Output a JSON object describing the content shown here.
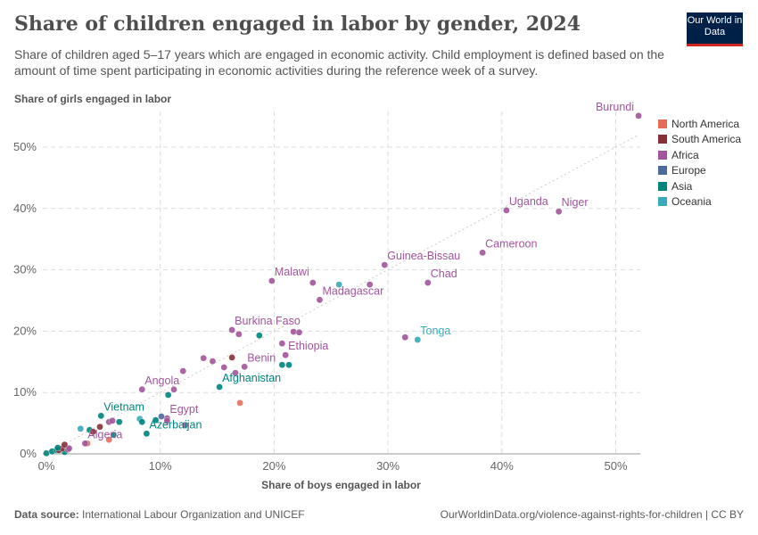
{
  "header": {
    "title": "Share of children engaged in labor by gender, 2024",
    "subtitle": "Share of children aged 5–17 years which are engaged in economic activity. Child employment is defined based on the amount of time spent participating in economic activities during the reference week of a survey.",
    "logo": "Our World in Data"
  },
  "footer": {
    "source_label": "Data source:",
    "source": "International Labour Organization and UNICEF",
    "url": "OurWorldinData.org/violence-against-rights-for-children | CC BY"
  },
  "chart_data": {
    "type": "scatter",
    "title": "Share of children engaged in labor by gender, 2024",
    "xlabel": "Share of boys engaged in labor",
    "ylabel": "Share of girls engaged in labor",
    "xlim": [
      0,
      52
    ],
    "ylim": [
      0,
      55
    ],
    "xticks": [
      "0%",
      "10%",
      "20%",
      "30%",
      "40%",
      "50%"
    ],
    "yticks": [
      "0%",
      "10%",
      "20%",
      "30%",
      "40%",
      "50%"
    ],
    "grid": true,
    "legend_position": "right",
    "reference_line": "y = x",
    "colors": {
      "North America": "#e56e5a",
      "South America": "#883039",
      "Africa": "#a2559c",
      "Europe": "#4c6a9c",
      "Asia": "#00847e",
      "Oceania": "#38aaba"
    },
    "legend": [
      "North America",
      "South America",
      "Africa",
      "Europe",
      "Asia",
      "Oceania"
    ],
    "points": [
      {
        "label": "Burundi",
        "region": "Africa",
        "x": 52.0,
        "y": 55.1
      },
      {
        "label": "Uganda",
        "region": "Africa",
        "x": 40.4,
        "y": 39.7
      },
      {
        "label": "Niger",
        "region": "Africa",
        "x": 45.0,
        "y": 39.5
      },
      {
        "label": "Cameroon",
        "region": "Africa",
        "x": 38.3,
        "y": 32.8
      },
      {
        "label": "Guinea-Bissau",
        "region": "Africa",
        "x": 29.7,
        "y": 30.8
      },
      {
        "label": "Chad",
        "region": "Africa",
        "x": 33.5,
        "y": 27.9
      },
      {
        "label": "Madagascar",
        "region": "Africa",
        "x": 24.0,
        "y": 25.1
      },
      {
        "label": "Malawi",
        "region": "Africa",
        "x": 19.8,
        "y": 28.2
      },
      {
        "label": "",
        "region": "Africa",
        "x": 23.4,
        "y": 27.9
      },
      {
        "label": "",
        "region": "Africa",
        "x": 28.4,
        "y": 27.6
      },
      {
        "label": "",
        "region": "Oceania",
        "x": 25.7,
        "y": 27.6
      },
      {
        "label": "Burkina Faso",
        "region": "Africa",
        "x": 16.3,
        "y": 20.2
      },
      {
        "label": "",
        "region": "Africa",
        "x": 16.9,
        "y": 19.5
      },
      {
        "label": "",
        "region": "Asia",
        "x": 18.7,
        "y": 19.3
      },
      {
        "label": "",
        "region": "Africa",
        "x": 21.7,
        "y": 19.9
      },
      {
        "label": "",
        "region": "Africa",
        "x": 22.2,
        "y": 19.8
      },
      {
        "label": "",
        "region": "Africa",
        "x": 31.5,
        "y": 19.0
      },
      {
        "label": "Tonga",
        "region": "Oceania",
        "x": 32.6,
        "y": 18.6
      },
      {
        "label": "",
        "region": "Africa",
        "x": 20.7,
        "y": 18.0
      },
      {
        "label": "Ethiopia",
        "region": "Africa",
        "x": 21.0,
        "y": 16.1
      },
      {
        "label": "",
        "region": "Asia",
        "x": 20.7,
        "y": 14.5
      },
      {
        "label": "",
        "region": "Asia",
        "x": 21.3,
        "y": 14.5
      },
      {
        "label": "Benin",
        "region": "Africa",
        "x": 17.4,
        "y": 14.2
      },
      {
        "label": "",
        "region": "South America",
        "x": 16.3,
        "y": 15.7
      },
      {
        "label": "",
        "region": "Africa",
        "x": 13.8,
        "y": 15.6
      },
      {
        "label": "",
        "region": "Africa",
        "x": 14.6,
        "y": 15.1
      },
      {
        "label": "",
        "region": "Africa",
        "x": 15.6,
        "y": 14.1
      },
      {
        "label": "",
        "region": "Africa",
        "x": 16.6,
        "y": 13.2
      },
      {
        "label": "",
        "region": "Africa",
        "x": 12.0,
        "y": 13.5
      },
      {
        "label": "Afghanistan",
        "region": "Asia",
        "x": 15.2,
        "y": 10.9
      },
      {
        "label": "Angola",
        "region": "Africa",
        "x": 8.4,
        "y": 10.5
      },
      {
        "label": "",
        "region": "Africa",
        "x": 11.2,
        "y": 10.5
      },
      {
        "label": "",
        "region": "Asia",
        "x": 10.7,
        "y": 9.6
      },
      {
        "label": "",
        "region": "North America",
        "x": 17.0,
        "y": 8.3
      },
      {
        "label": "Egypt",
        "region": "Africa",
        "x": 10.6,
        "y": 5.8
      },
      {
        "label": "",
        "region": "Africa",
        "x": 10.6,
        "y": 5.4
      },
      {
        "label": "",
        "region": "Europe",
        "x": 10.1,
        "y": 6.1
      },
      {
        "label": "",
        "region": "Africa",
        "x": 12.2,
        "y": 4.7
      },
      {
        "label": "",
        "region": "Asia",
        "x": 9.6,
        "y": 5.5
      },
      {
        "label": "",
        "region": "Oceania",
        "x": 8.2,
        "y": 5.7
      },
      {
        "label": "",
        "region": "Asia",
        "x": 8.4,
        "y": 5.2
      },
      {
        "label": "Azerbaijan",
        "region": "Asia",
        "x": 8.8,
        "y": 3.3
      },
      {
        "label": "Vietnam",
        "region": "Asia",
        "x": 4.8,
        "y": 6.2
      },
      {
        "label": "",
        "region": "Asia",
        "x": 6.4,
        "y": 5.2
      },
      {
        "label": "",
        "region": "Africa",
        "x": 5.5,
        "y": 5.2
      },
      {
        "label": "",
        "region": "Africa",
        "x": 5.8,
        "y": 5.4
      },
      {
        "label": "",
        "region": "South America",
        "x": 4.7,
        "y": 4.4
      },
      {
        "label": "",
        "region": "Oceania",
        "x": 3.0,
        "y": 4.1
      },
      {
        "label": "",
        "region": "Asia",
        "x": 3.8,
        "y": 3.9
      },
      {
        "label": "",
        "region": "South America",
        "x": 4.1,
        "y": 3.6
      },
      {
        "label": "",
        "region": "Asia",
        "x": 5.9,
        "y": 3.1
      },
      {
        "label": "",
        "region": "North America",
        "x": 5.5,
        "y": 2.3
      },
      {
        "label": "",
        "region": "North America",
        "x": 3.6,
        "y": 1.7
      },
      {
        "label": "Algeria",
        "region": "Africa",
        "x": 3.4,
        "y": 1.7
      },
      {
        "label": "",
        "region": "Asia",
        "x": 0.0,
        "y": 0.1
      },
      {
        "label": "",
        "region": "Asia",
        "x": 0.5,
        "y": 0.4
      },
      {
        "label": "",
        "region": "Asia",
        "x": 0.9,
        "y": 0.6
      },
      {
        "label": "",
        "region": "Asia",
        "x": 1.6,
        "y": 0.3
      },
      {
        "label": "",
        "region": "South America",
        "x": 1.1,
        "y": 0.6
      },
      {
        "label": "",
        "region": "South America",
        "x": 1.4,
        "y": 0.9
      },
      {
        "label": "",
        "region": "Africa",
        "x": 1.9,
        "y": 0.7
      },
      {
        "label": "",
        "region": "Africa",
        "x": 2.0,
        "y": 0.9
      },
      {
        "label": "",
        "region": "Asia",
        "x": 1.0,
        "y": 1.0
      },
      {
        "label": "",
        "region": "South America",
        "x": 1.6,
        "y": 1.5
      }
    ]
  }
}
